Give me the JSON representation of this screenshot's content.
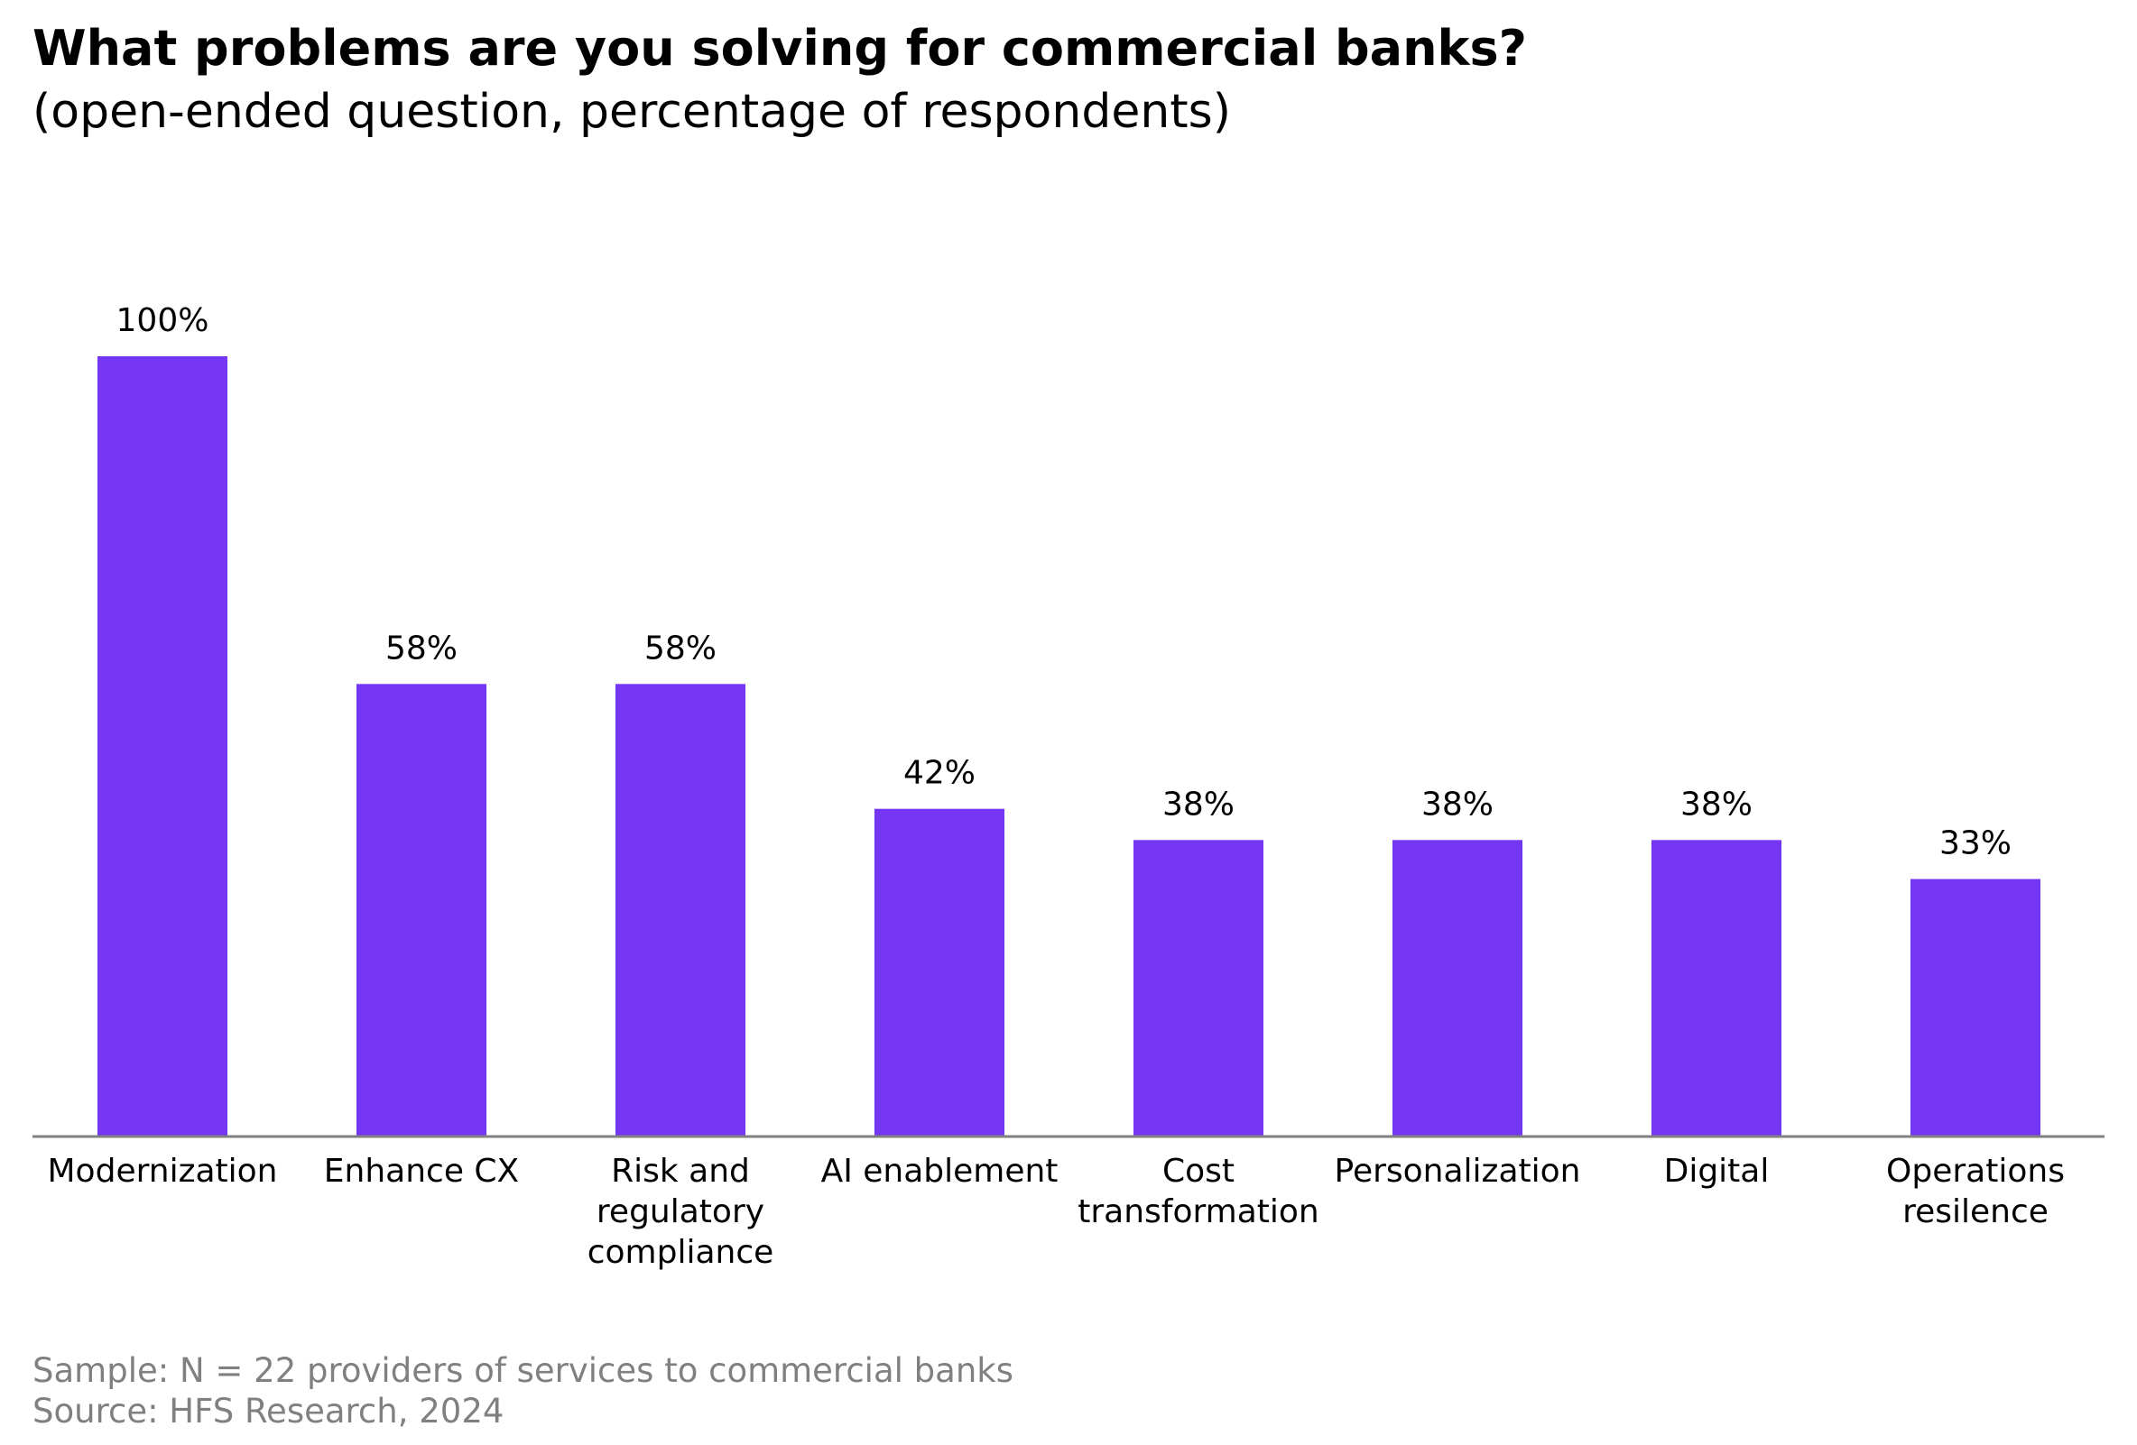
{
  "title": "What problems are you solving for commercial banks?",
  "subtitle": "(open-ended question, percentage of respondents)",
  "footer": {
    "sample": "Sample: N = 22 providers of services to commercial banks",
    "source": "Source: HFS Research, 2024"
  },
  "chart_data": {
    "type": "bar",
    "title": "What problems are you solving for commercial banks?",
    "subtitle": "(open-ended question, percentage of respondents)",
    "categories": [
      [
        "Modernization"
      ],
      [
        "Enhance CX"
      ],
      [
        "Risk and",
        "regulatory",
        "compliance"
      ],
      [
        "AI enablement"
      ],
      [
        "Cost",
        "transformation"
      ],
      [
        "Personalization"
      ],
      [
        "Digital"
      ],
      [
        "Operations",
        "resilence"
      ]
    ],
    "values": [
      100,
      58,
      58,
      42,
      38,
      38,
      38,
      33
    ],
    "data_labels": [
      "100%",
      "58%",
      "58%",
      "42%",
      "38%",
      "38%",
      "38%",
      "33%"
    ],
    "bar_color": "#7436F2",
    "axis_color": "#808080",
    "ylim": [
      0,
      100
    ],
    "grid": false,
    "legend": "none"
  }
}
